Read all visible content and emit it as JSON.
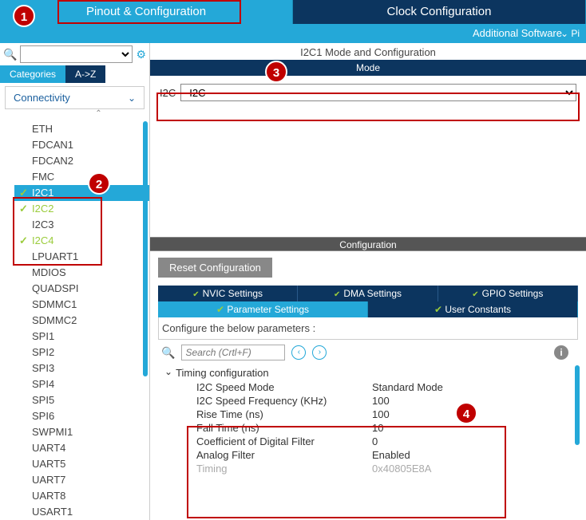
{
  "tabs": {
    "pinout": "Pinout & Configuration",
    "clock": "Clock Configuration",
    "additional": "Additional Software",
    "pi": "Pi"
  },
  "sidebar": {
    "categories_tab": "Categories",
    "az_tab": "A->Z",
    "group": "Connectivity",
    "items": [
      {
        "label": "ETH",
        "check": false
      },
      {
        "label": "FDCAN1",
        "check": false
      },
      {
        "label": "FDCAN2",
        "check": false
      },
      {
        "label": "FMC",
        "check": false
      },
      {
        "label": "I2C1",
        "check": true,
        "sel": true
      },
      {
        "label": "I2C2",
        "check": true,
        "green": true
      },
      {
        "label": "I2C3",
        "check": false
      },
      {
        "label": "I2C4",
        "check": true,
        "green": true
      },
      {
        "label": "LPUART1",
        "check": false
      },
      {
        "label": "MDIOS",
        "check": false
      },
      {
        "label": "QUADSPI",
        "check": false
      },
      {
        "label": "SDMMC1",
        "check": false
      },
      {
        "label": "SDMMC2",
        "check": false
      },
      {
        "label": "SPI1",
        "check": false
      },
      {
        "label": "SPI2",
        "check": false
      },
      {
        "label": "SPI3",
        "check": false
      },
      {
        "label": "SPI4",
        "check": false
      },
      {
        "label": "SPI5",
        "check": false
      },
      {
        "label": "SPI6",
        "check": false
      },
      {
        "label": "SWPMI1",
        "check": false
      },
      {
        "label": "UART4",
        "check": false
      },
      {
        "label": "UART5",
        "check": false
      },
      {
        "label": "UART7",
        "check": false
      },
      {
        "label": "UART8",
        "check": false
      },
      {
        "label": "USART1",
        "check": false
      }
    ]
  },
  "mode": {
    "title": "I2C1 Mode and Configuration",
    "bar": "Mode",
    "label": "I2C",
    "value": "I2C"
  },
  "config": {
    "header": "Configuration",
    "reset": "Reset Configuration",
    "tabs1": [
      "NVIC Settings",
      "DMA Settings",
      "GPIO Settings"
    ],
    "tabs2": [
      "Parameter Settings",
      "User Constants"
    ],
    "instruction": "Configure the below parameters :",
    "search_ph": "Search (Crtl+F)",
    "group": "Timing configuration",
    "params": [
      {
        "k": "I2C Speed Mode",
        "v": "Standard Mode"
      },
      {
        "k": "I2C Speed Frequency (KHz)",
        "v": "100"
      },
      {
        "k": "Rise Time (ns)",
        "v": "100"
      },
      {
        "k": "Fall Time (ns)",
        "v": "10"
      },
      {
        "k": "Coefficient of Digital Filter",
        "v": "0"
      },
      {
        "k": "Analog Filter",
        "v": "Enabled"
      },
      {
        "k": "Timing",
        "v": "0x40805E8A",
        "dim": true
      }
    ]
  },
  "callouts": {
    "c1": "1",
    "c2": "2",
    "c3": "3",
    "c4": "4"
  }
}
